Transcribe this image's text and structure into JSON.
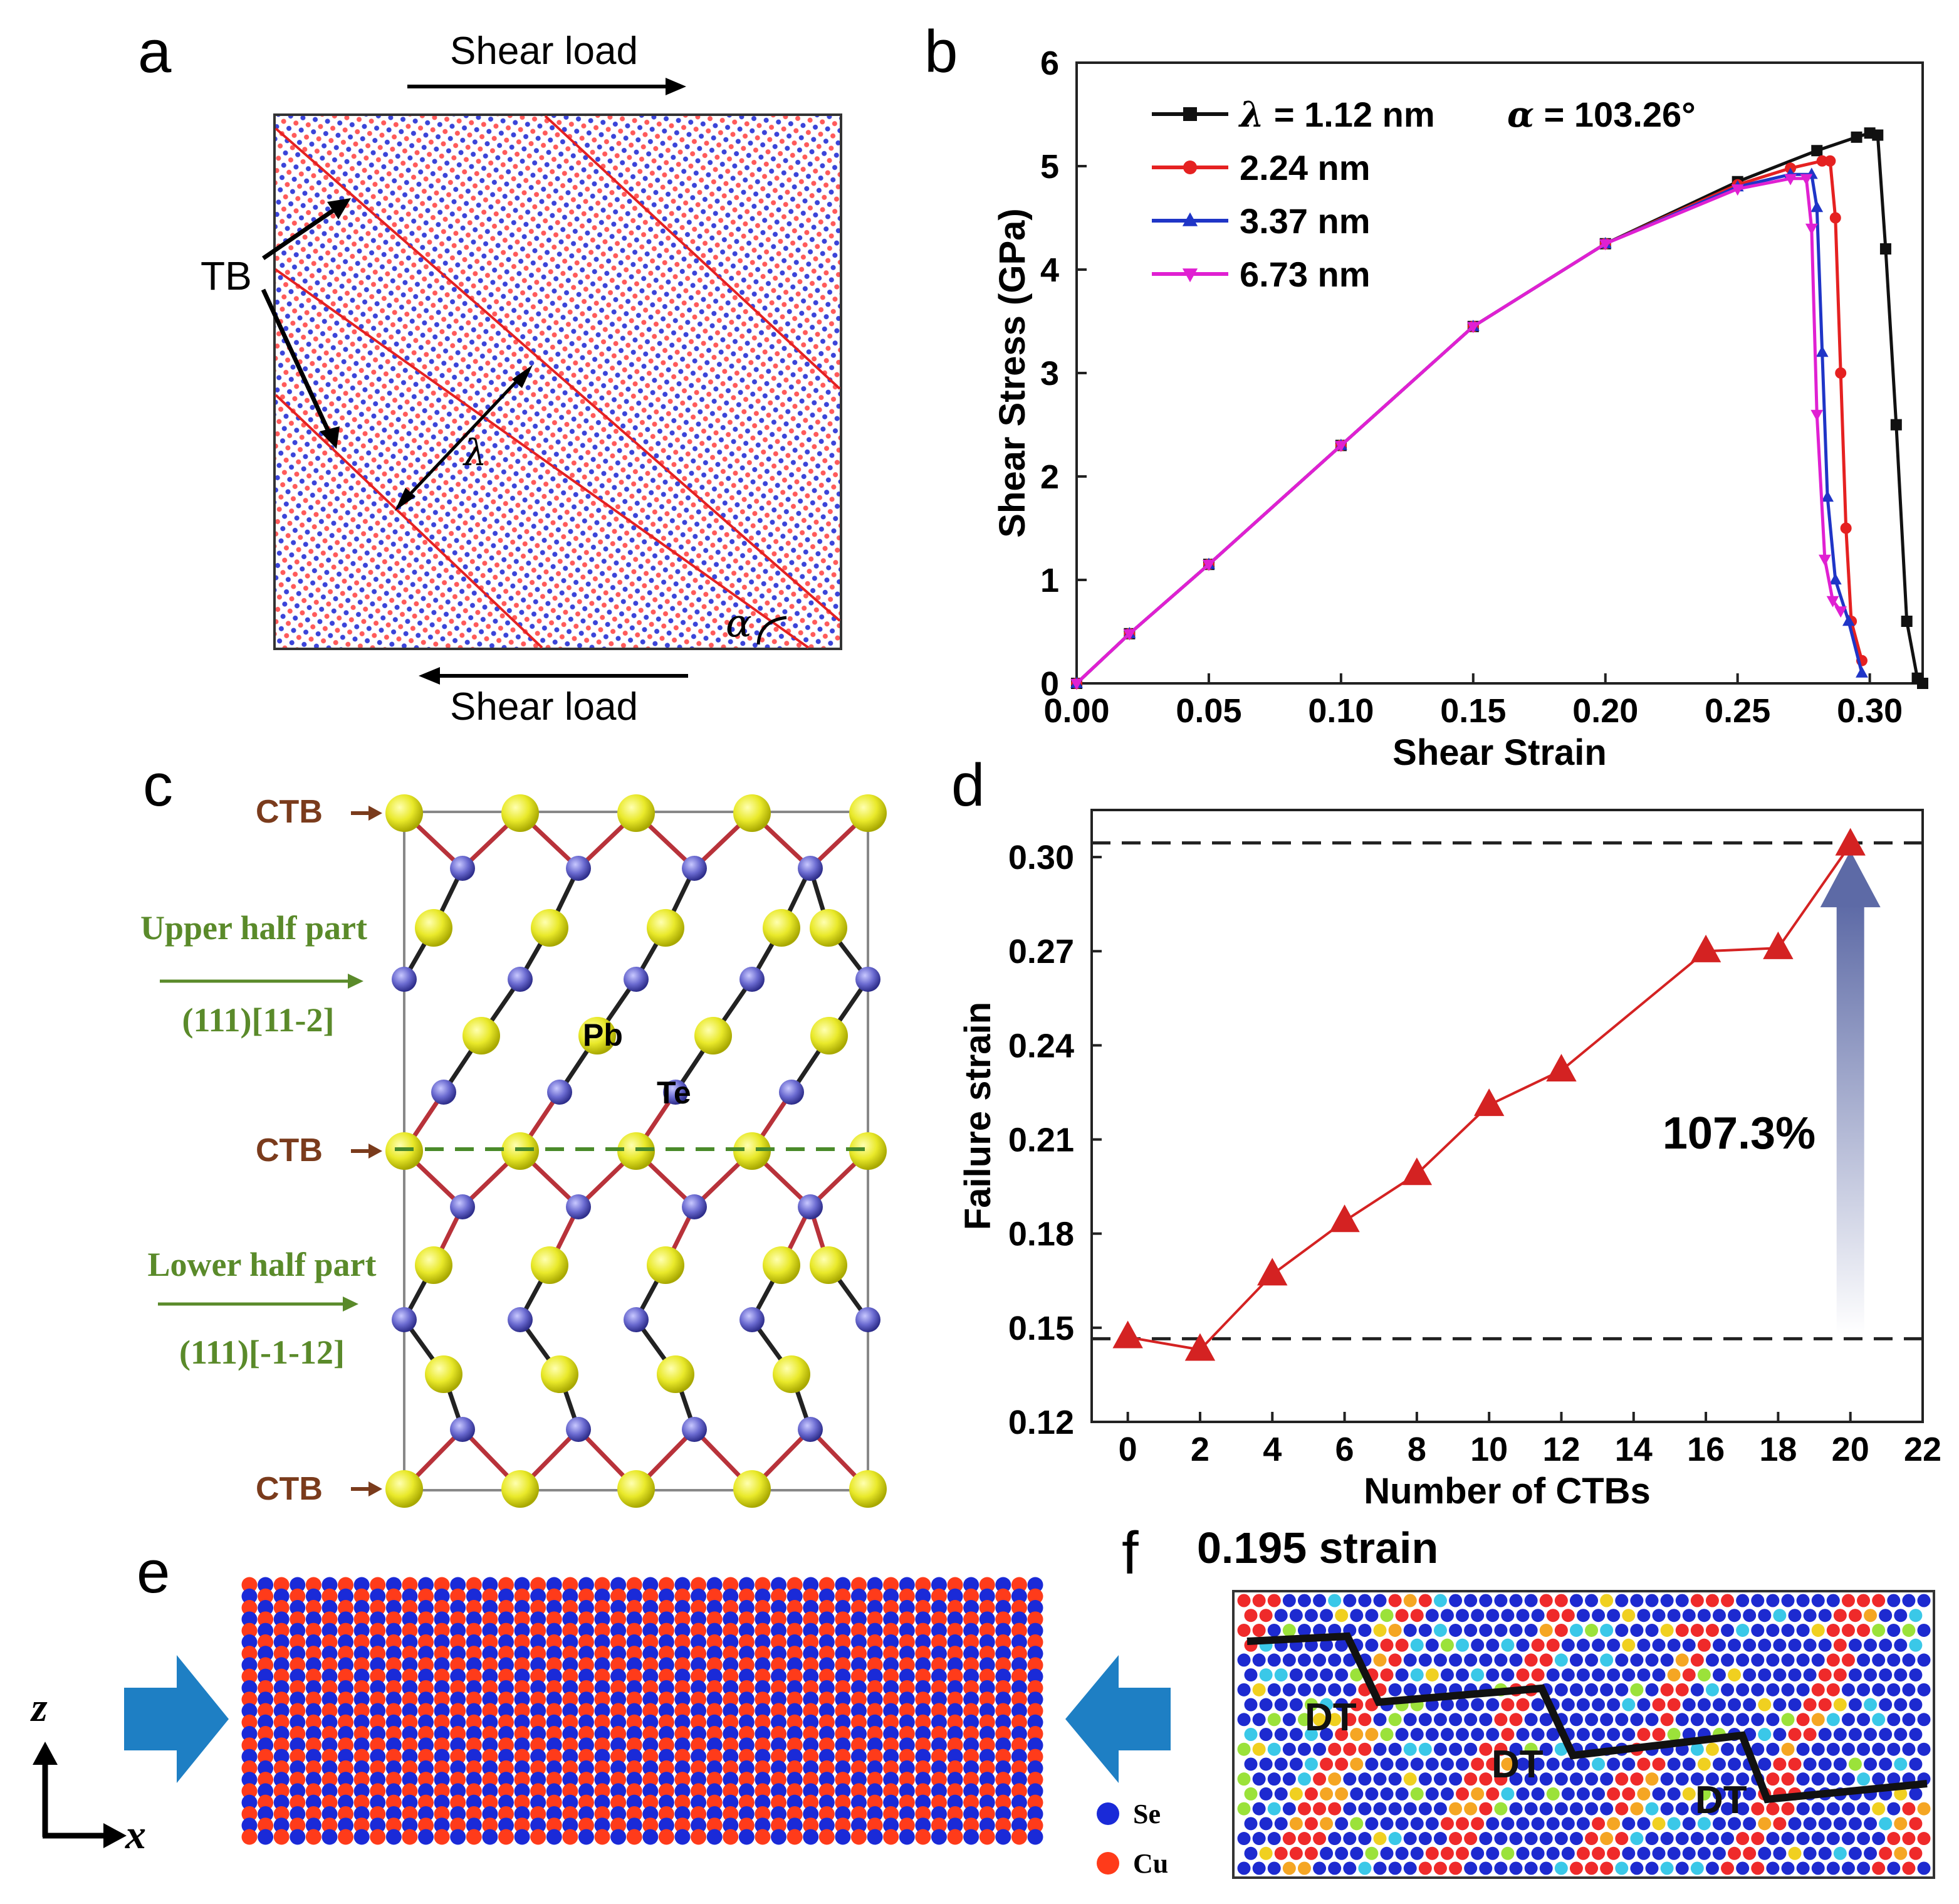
{
  "panel_labels": {
    "a": "a",
    "b": "b",
    "c": "c",
    "d": "d",
    "e": "e",
    "f": "f"
  },
  "panel_a": {
    "top_label": "Shear load",
    "bottom_label": "Shear load",
    "tb_label": "TB",
    "lambda_label": "λ",
    "alpha_label": "α"
  },
  "panel_c": {
    "ctb_label": "CTB",
    "upper_title": "Upper half part",
    "upper_orient": "(111)[11-2]",
    "lower_title": "Lower half part",
    "lower_orient": "(111)[-1-12]",
    "pb_label": "Pb",
    "te_label": "Te"
  },
  "panel_e": {
    "axis_z": "z",
    "axis_x": "x",
    "legend": [
      {
        "label": "Se",
        "color": "#1a2ad8"
      },
      {
        "label": "Cu",
        "color": "#ff3b1a"
      }
    ]
  },
  "panel_f": {
    "title": "0.195 strain",
    "dt_label": "DT"
  },
  "chart_data": [
    {
      "id": "b",
      "type": "line",
      "title": "",
      "xlabel": "Shear Strain",
      "ylabel": "Shear Stress (GPa)",
      "xlim": [
        0,
        0.32
      ],
      "ylim": [
        0,
        6
      ],
      "xticks": [
        "0.00",
        "0.05",
        "0.10",
        "0.15",
        "0.20",
        "0.25",
        "0.30"
      ],
      "yticks": [
        "0",
        "1",
        "2",
        "3",
        "4",
        "5",
        "6"
      ],
      "legend_prefix": "λ = ",
      "legend_note": "α = 103.26°",
      "series": [
        {
          "name": "1.12 nm",
          "color": "#111111",
          "marker": "square",
          "x": [
            0,
            0.02,
            0.05,
            0.1,
            0.15,
            0.2,
            0.25,
            0.28,
            0.295,
            0.3,
            0.303,
            0.306,
            0.31,
            0.314,
            0.318,
            0.32
          ],
          "y": [
            0,
            0.48,
            1.15,
            2.3,
            3.45,
            4.25,
            4.85,
            5.15,
            5.28,
            5.32,
            5.3,
            4.2,
            2.5,
            0.6,
            0.05,
            0
          ]
        },
        {
          "name": "2.24 nm",
          "color": "#e52121",
          "marker": "circle",
          "x": [
            0,
            0.02,
            0.05,
            0.1,
            0.15,
            0.2,
            0.25,
            0.27,
            0.282,
            0.285,
            0.287,
            0.289,
            0.291,
            0.293,
            0.297
          ],
          "y": [
            0,
            0.48,
            1.15,
            2.3,
            3.45,
            4.25,
            4.82,
            4.98,
            5.05,
            5.05,
            4.5,
            3.0,
            1.5,
            0.6,
            0.22
          ]
        },
        {
          "name": "3.37 nm",
          "color": "#1f35c7",
          "marker": "triangle-up",
          "x": [
            0,
            0.02,
            0.05,
            0.1,
            0.15,
            0.2,
            0.25,
            0.27,
            0.278,
            0.28,
            0.282,
            0.284,
            0.287,
            0.292,
            0.297
          ],
          "y": [
            0,
            0.48,
            1.15,
            2.3,
            3.45,
            4.25,
            4.8,
            4.92,
            4.92,
            4.6,
            3.2,
            1.8,
            1.0,
            0.6,
            0.1
          ]
        },
        {
          "name": "6.73 nm",
          "color": "#e020d2",
          "marker": "triangle-down",
          "x": [
            0,
            0.02,
            0.05,
            0.1,
            0.15,
            0.2,
            0.25,
            0.27,
            0.276,
            0.278,
            0.28,
            0.283,
            0.286,
            0.289
          ],
          "y": [
            0,
            0.48,
            1.15,
            2.3,
            3.45,
            4.25,
            4.78,
            4.88,
            4.88,
            4.4,
            2.6,
            1.2,
            0.8,
            0.7
          ]
        }
      ]
    },
    {
      "id": "d",
      "type": "line",
      "title": "",
      "xlabel": "Number of CTBs",
      "ylabel": "Failure strain",
      "xlim": [
        -1,
        22
      ],
      "ylim": [
        0.12,
        0.315
      ],
      "xticks": [
        "0",
        "2",
        "4",
        "6",
        "8",
        "10",
        "12",
        "14",
        "16",
        "18",
        "20",
        "22"
      ],
      "yticks": [
        "0.12",
        "0.15",
        "0.18",
        "0.21",
        "0.24",
        "0.27",
        "0.30"
      ],
      "reference_lines": [
        0.3045,
        0.1465
      ],
      "annotation": "107.3%",
      "series": [
        {
          "name": "Failure strain",
          "color": "#d42222",
          "marker": "triangle-up",
          "x": [
            0,
            2,
            4,
            6,
            8,
            10,
            12,
            16,
            18,
            20
          ],
          "y": [
            0.147,
            0.143,
            0.167,
            0.184,
            0.199,
            0.221,
            0.232,
            0.27,
            0.271,
            0.304
          ]
        }
      ]
    }
  ]
}
